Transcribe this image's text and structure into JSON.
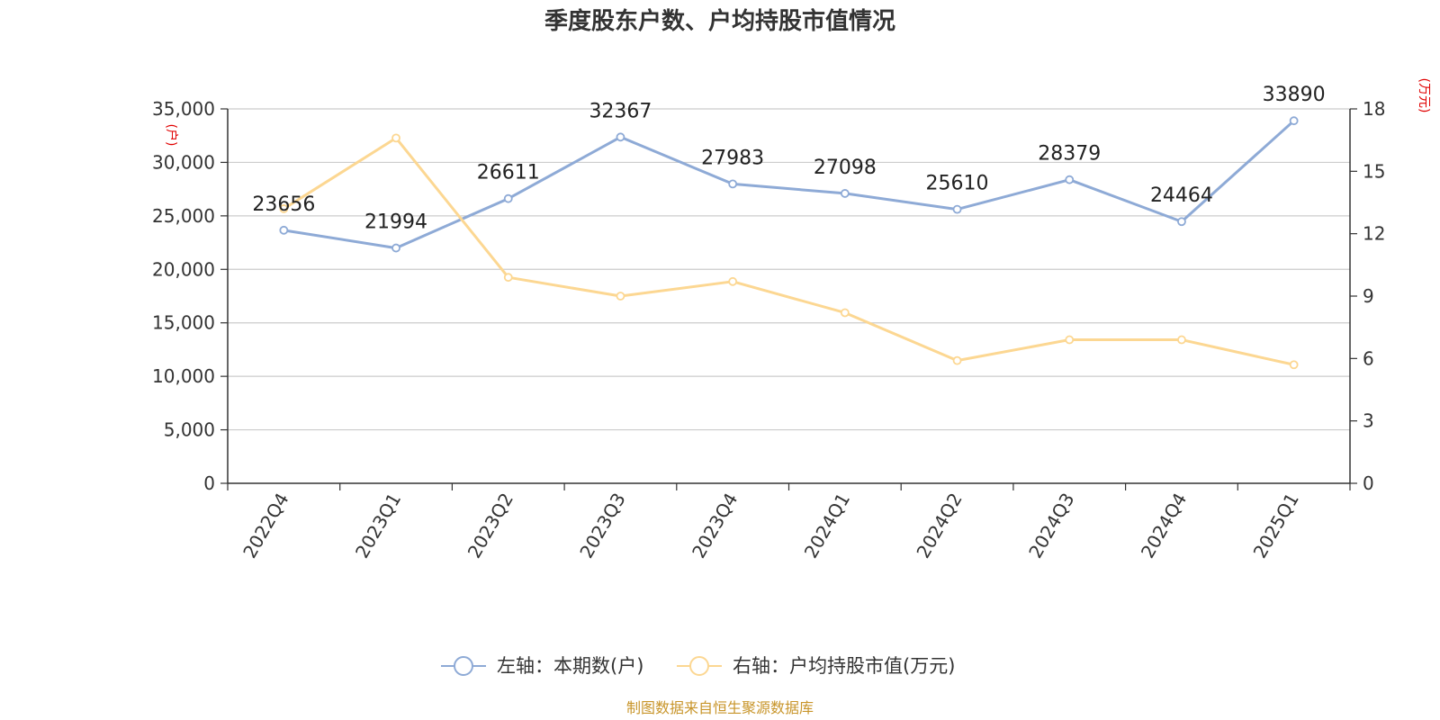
{
  "chart_data": {
    "type": "line",
    "title": "季度股东户数、户均持股市值情况",
    "categories": [
      "2022Q4",
      "2023Q1",
      "2023Q2",
      "2023Q3",
      "2023Q4",
      "2024Q1",
      "2024Q2",
      "2024Q3",
      "2024Q4",
      "2025Q1"
    ],
    "series": [
      {
        "name": "左轴：本期数(户)",
        "axis": "left",
        "color": "#8eaad6",
        "values": [
          23656,
          21994,
          26611,
          32367,
          27983,
          27098,
          25610,
          28379,
          24464,
          33890
        ],
        "labels": [
          "23656",
          "21994",
          "26611",
          "32367",
          "27983",
          "27098",
          "25610",
          "28379",
          "24464",
          "33890"
        ]
      },
      {
        "name": "右轴：户均持股市值(万元)",
        "axis": "right",
        "color": "#fcd792",
        "values": [
          13.2,
          16.6,
          9.9,
          9.0,
          9.7,
          8.2,
          5.9,
          6.9,
          6.9,
          5.7
        ]
      }
    ],
    "y_left": {
      "unit": "(户)",
      "ylim": [
        0,
        35000
      ],
      "ticks": [
        0,
        5000,
        10000,
        15000,
        20000,
        25000,
        30000,
        35000
      ],
      "tick_labels": [
        "0",
        "5,000",
        "10,000",
        "15,000",
        "20,000",
        "25,000",
        "30,000",
        "35,000"
      ]
    },
    "y_right": {
      "unit": "(万元)",
      "ylim": [
        0,
        18
      ],
      "ticks": [
        0,
        3,
        6,
        9,
        12,
        15,
        18
      ],
      "tick_labels": [
        "0",
        "3",
        "6",
        "9",
        "12",
        "15",
        "18"
      ]
    },
    "grid": true,
    "legend_position": "bottom"
  },
  "source": "制图数据来自恒生聚源数据库"
}
